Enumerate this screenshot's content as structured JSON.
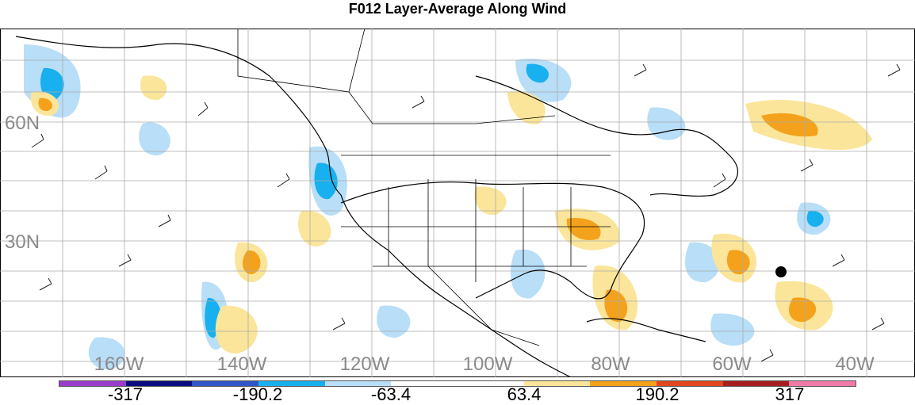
{
  "title": "F012 Layer-Average Along Wind",
  "map": {
    "lat_labels": [
      "60N",
      "30N"
    ],
    "lon_labels": [
      "160W",
      "140W",
      "120W",
      "100W",
      "80W",
      "60W",
      "40W"
    ],
    "marker": "black dot"
  },
  "colorbar": {
    "colors": [
      "#9a3ccc",
      "#0b0b80",
      "#2f55c8",
      "#18b0ee",
      "#b8def8",
      "#ffffff",
      "#ffffff",
      "#fbe59a",
      "#f4a21c",
      "#e2461e",
      "#a81e1e",
      "#f07aa8"
    ],
    "ticks": [
      "-317",
      "-190.2",
      "-63.4",
      "63.4",
      "190.2",
      "317"
    ]
  }
}
